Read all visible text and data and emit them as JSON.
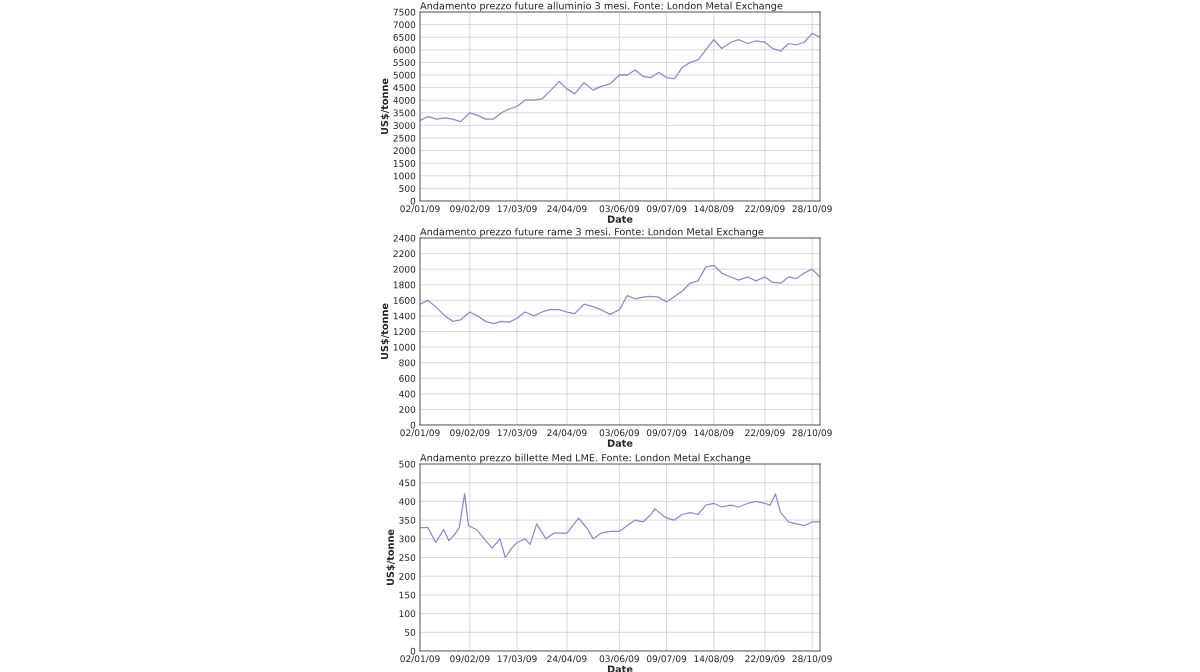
{
  "chart_data": [
    {
      "type": "line",
      "title": "Andamento prezzo future alluminio 3 mesi. Fonte: London Metal Exchange",
      "xlabel": "Date",
      "ylabel": "US$/tonne",
      "grid": true,
      "line_style": "solid",
      "marker": "none",
      "xlim": [
        "2009-01-02",
        "2009-11-03"
      ],
      "xticks": [
        {
          "value": "2009-01-02",
          "label": "02/01/09"
        },
        {
          "value": "2009-02-09",
          "label": "09/02/09"
        },
        {
          "value": "2009-03-17",
          "label": "17/03/09"
        },
        {
          "value": "2009-04-24",
          "label": "24/04/09"
        },
        {
          "value": "2009-06-03",
          "label": "03/06/09"
        },
        {
          "value": "2009-07-09",
          "label": "09/07/09"
        },
        {
          "value": "2009-08-14",
          "label": "14/08/09"
        },
        {
          "value": "2009-09-22",
          "label": "22/09/09"
        },
        {
          "value": "2009-10-28",
          "label": "28/10/09"
        }
      ],
      "ylim": [
        0,
        7500
      ],
      "yticks": [
        0,
        500,
        1000,
        1500,
        2000,
        2500,
        3000,
        3500,
        4000,
        4500,
        5000,
        5500,
        6000,
        6500,
        7000,
        7500
      ],
      "series": [
        {
          "color": "#8c8cc0",
          "x": [
            "2009-01-02",
            "2009-01-08",
            "2009-01-15",
            "2009-01-21",
            "2009-01-27",
            "2009-02-02",
            "2009-02-09",
            "2009-02-15",
            "2009-02-21",
            "2009-02-27",
            "2009-03-05",
            "2009-03-11",
            "2009-03-17",
            "2009-03-23",
            "2009-03-30",
            "2009-04-05",
            "2009-04-11",
            "2009-04-18",
            "2009-04-24",
            "2009-04-30",
            "2009-05-07",
            "2009-05-14",
            "2009-05-20",
            "2009-05-27",
            "2009-06-03",
            "2009-06-09",
            "2009-06-15",
            "2009-06-21",
            "2009-06-27",
            "2009-07-03",
            "2009-07-09",
            "2009-07-15",
            "2009-07-21",
            "2009-07-27",
            "2009-08-02",
            "2009-08-08",
            "2009-08-14",
            "2009-08-20",
            "2009-08-27",
            "2009-09-02",
            "2009-09-09",
            "2009-09-15",
            "2009-09-22",
            "2009-09-28",
            "2009-10-04",
            "2009-10-10",
            "2009-10-16",
            "2009-10-22",
            "2009-10-28",
            "2009-11-03"
          ],
          "values": [
            3200,
            3350,
            3250,
            3300,
            3250,
            3150,
            3500,
            3400,
            3250,
            3250,
            3500,
            3650,
            3750,
            4000,
            4000,
            4050,
            4350,
            4750,
            4450,
            4250,
            4700,
            4400,
            4550,
            4650,
            5000,
            5000,
            5200,
            4950,
            4900,
            5100,
            4900,
            4850,
            5300,
            5500,
            5600,
            6000,
            6400,
            6050,
            6300,
            6400,
            6250,
            6350,
            6300,
            6050,
            5950,
            6250,
            6200,
            6300,
            6650,
            6500
          ]
        }
      ]
    },
    {
      "type": "line",
      "title": "Andamento prezzo future rame 3 mesi. Fonte: London Metal Exchange",
      "xlabel": "Date",
      "ylabel": "US$/tonne",
      "grid": true,
      "line_style": "solid",
      "marker": "none",
      "xlim": [
        "2009-01-02",
        "2009-11-03"
      ],
      "xticks": [
        {
          "value": "2009-01-02",
          "label": "02/01/09"
        },
        {
          "value": "2009-02-09",
          "label": "09/02/09"
        },
        {
          "value": "2009-03-17",
          "label": "17/03/09"
        },
        {
          "value": "2009-04-24",
          "label": "24/04/09"
        },
        {
          "value": "2009-06-03",
          "label": "03/06/09"
        },
        {
          "value": "2009-07-09",
          "label": "09/07/09"
        },
        {
          "value": "2009-08-14",
          "label": "14/08/09"
        },
        {
          "value": "2009-09-22",
          "label": "22/09/09"
        },
        {
          "value": "2009-10-28",
          "label": "28/10/09"
        }
      ],
      "ylim": [
        0,
        2400
      ],
      "yticks": [
        0,
        200,
        400,
        600,
        800,
        1000,
        1200,
        1400,
        1600,
        1800,
        2000,
        2200,
        2400
      ],
      "series": [
        {
          "color": "#8c8cc0",
          "x": [
            "2009-01-02",
            "2009-01-08",
            "2009-01-15",
            "2009-01-21",
            "2009-01-27",
            "2009-02-02",
            "2009-02-09",
            "2009-02-15",
            "2009-02-21",
            "2009-02-27",
            "2009-03-05",
            "2009-03-11",
            "2009-03-17",
            "2009-03-23",
            "2009-03-30",
            "2009-04-05",
            "2009-04-11",
            "2009-04-18",
            "2009-04-24",
            "2009-04-30",
            "2009-05-07",
            "2009-05-14",
            "2009-05-20",
            "2009-05-27",
            "2009-06-03",
            "2009-06-09",
            "2009-06-15",
            "2009-06-21",
            "2009-06-27",
            "2009-07-03",
            "2009-07-09",
            "2009-07-15",
            "2009-07-21",
            "2009-07-27",
            "2009-08-02",
            "2009-08-08",
            "2009-08-14",
            "2009-08-20",
            "2009-08-27",
            "2009-09-02",
            "2009-09-09",
            "2009-09-15",
            "2009-09-22",
            "2009-09-28",
            "2009-10-04",
            "2009-10-10",
            "2009-10-16",
            "2009-10-22",
            "2009-10-28",
            "2009-11-03"
          ],
          "values": [
            1550,
            1600,
            1500,
            1400,
            1330,
            1350,
            1450,
            1400,
            1330,
            1300,
            1330,
            1320,
            1370,
            1450,
            1400,
            1450,
            1480,
            1480,
            1450,
            1430,
            1550,
            1520,
            1480,
            1420,
            1480,
            1660,
            1620,
            1640,
            1650,
            1640,
            1580,
            1650,
            1720,
            1820,
            1850,
            2030,
            2050,
            1950,
            1900,
            1860,
            1900,
            1850,
            1900,
            1830,
            1820,
            1900,
            1880,
            1950,
            2000,
            1900
          ]
        }
      ]
    },
    {
      "type": "line",
      "title": "Andamento prezzo billette Med LME. Fonte: London Metal Exchange",
      "xlabel": "Date",
      "ylabel": "US$/tonne",
      "grid": true,
      "line_style": "solid",
      "marker": "none",
      "xlim": [
        "2009-01-02",
        "2009-11-03"
      ],
      "xticks": [
        {
          "value": "2009-01-02",
          "label": "02/01/09"
        },
        {
          "value": "2009-02-09",
          "label": "09/02/09"
        },
        {
          "value": "2009-03-17",
          "label": "17/03/09"
        },
        {
          "value": "2009-04-24",
          "label": "24/04/09"
        },
        {
          "value": "2009-06-03",
          "label": "03/06/09"
        },
        {
          "value": "2009-07-09",
          "label": "09/07/09"
        },
        {
          "value": "2009-08-14",
          "label": "14/08/09"
        },
        {
          "value": "2009-09-22",
          "label": "22/09/09"
        },
        {
          "value": "2009-10-28",
          "label": "28/10/09"
        }
      ],
      "ylim": [
        0,
        500
      ],
      "yticks": [
        0,
        50,
        100,
        150,
        200,
        250,
        300,
        350,
        400,
        450,
        500
      ],
      "series": [
        {
          "color": "#8c8cc0",
          "x": [
            "2009-01-02",
            "2009-01-08",
            "2009-01-14",
            "2009-01-20",
            "2009-01-24",
            "2009-01-28",
            "2009-02-01",
            "2009-02-05",
            "2009-02-08",
            "2009-02-14",
            "2009-02-20",
            "2009-02-26",
            "2009-03-04",
            "2009-03-08",
            "2009-03-13",
            "2009-03-17",
            "2009-03-23",
            "2009-03-27",
            "2009-04-01",
            "2009-04-08",
            "2009-04-14",
            "2009-04-20",
            "2009-04-24",
            "2009-05-03",
            "2009-05-10",
            "2009-05-14",
            "2009-05-20",
            "2009-05-27",
            "2009-06-03",
            "2009-06-09",
            "2009-06-15",
            "2009-06-21",
            "2009-06-27",
            "2009-06-30",
            "2009-07-09",
            "2009-07-15",
            "2009-07-21",
            "2009-07-27",
            "2009-08-02",
            "2009-08-08",
            "2009-08-14",
            "2009-08-20",
            "2009-08-27",
            "2009-09-02",
            "2009-09-09",
            "2009-09-15",
            "2009-09-22",
            "2009-09-26",
            "2009-09-30",
            "2009-10-04",
            "2009-10-10",
            "2009-10-16",
            "2009-10-22",
            "2009-10-28",
            "2009-11-03"
          ],
          "values": [
            330,
            330,
            290,
            325,
            295,
            310,
            330,
            420,
            335,
            325,
            300,
            275,
            300,
            250,
            275,
            290,
            300,
            285,
            340,
            300,
            315,
            315,
            315,
            355,
            325,
            300,
            315,
            320,
            320,
            335,
            350,
            345,
            365,
            380,
            355,
            350,
            365,
            370,
            365,
            390,
            395,
            385,
            390,
            385,
            395,
            400,
            395,
            390,
            420,
            370,
            345,
            340,
            335,
            345,
            345
          ]
        }
      ]
    }
  ]
}
